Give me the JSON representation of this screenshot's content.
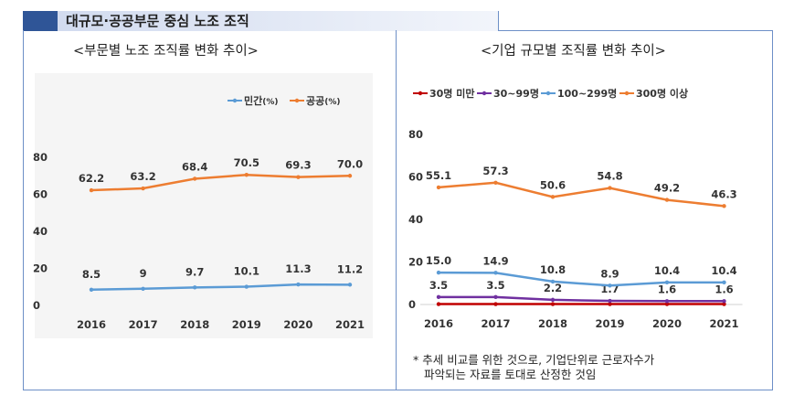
{
  "header": {
    "title": "대규모·공공부문 중심 노조 조직"
  },
  "left_panel": {
    "title": "<부문별 노조 조직률 변화 추이>"
  },
  "right_panel": {
    "title": "<기업 규모별 조직률 변화 추이>"
  },
  "note": {
    "line1": "* 추세 비교를 위한 것으로, 기업단위로 근로자수가",
    "line2": "파악되는 자료를 토대로 산정한 것임"
  },
  "chart_data": [
    {
      "type": "line",
      "title": "<부문별 노조 조직률 변화 추이>",
      "x": [
        "2016",
        "2017",
        "2018",
        "2019",
        "2020",
        "2021"
      ],
      "yticks": [
        "0",
        "20",
        "40",
        "60",
        "80"
      ],
      "ylim": [
        0,
        80
      ],
      "legend_position": "top-right",
      "series": [
        {
          "name": "민간",
          "unit": "(%)",
          "color": "#5b9bd5",
          "values": [
            8.5,
            9,
            9.7,
            10.1,
            11.3,
            11.2
          ],
          "labels": [
            "8.5",
            "9",
            "9.7",
            "10.1",
            "11.3",
            "11.2"
          ]
        },
        {
          "name": "공공",
          "unit": "(%)",
          "color": "#ed7d31",
          "values": [
            62.2,
            63.2,
            68.4,
            70.5,
            69.3,
            70.0
          ],
          "labels": [
            "62.2",
            "63.2",
            "68.4",
            "70.5",
            "69.3",
            "70.0"
          ]
        }
      ]
    },
    {
      "type": "line",
      "title": "<기업 규모별 조직률 변화 추이>",
      "x": [
        "2016",
        "2017",
        "2018",
        "2019",
        "2020",
        "2021"
      ],
      "yticks": [
        "0",
        "20",
        "40",
        "60",
        "80"
      ],
      "ylim": [
        0,
        80
      ],
      "legend_position": "top",
      "series": [
        {
          "name": "30명 미만",
          "color": "#c00000",
          "values": [
            0.2,
            0.2,
            0.2,
            0.2,
            0.2,
            0.2
          ],
          "labels": []
        },
        {
          "name": "30~99명",
          "color": "#7030a0",
          "values": [
            3.5,
            3.5,
            2.2,
            1.7,
            1.6,
            1.6
          ],
          "labels": [
            "3.5",
            "3.5",
            "2.2",
            "1.7",
            "1.6",
            "1.6"
          ]
        },
        {
          "name": "100~299명",
          "color": "#5b9bd5",
          "values": [
            15.0,
            14.9,
            10.8,
            8.9,
            10.4,
            10.4
          ],
          "labels": [
            "15.0",
            "14.9",
            "10.8",
            "8.9",
            "10.4",
            "10.4"
          ]
        },
        {
          "name": "300명 이상",
          "color": "#ed7d31",
          "values": [
            55.1,
            57.3,
            50.6,
            54.8,
            49.2,
            46.3
          ],
          "labels": [
            "55.1",
            "57.3",
            "50.6",
            "54.8",
            "49.2",
            "46.3"
          ]
        }
      ]
    }
  ]
}
